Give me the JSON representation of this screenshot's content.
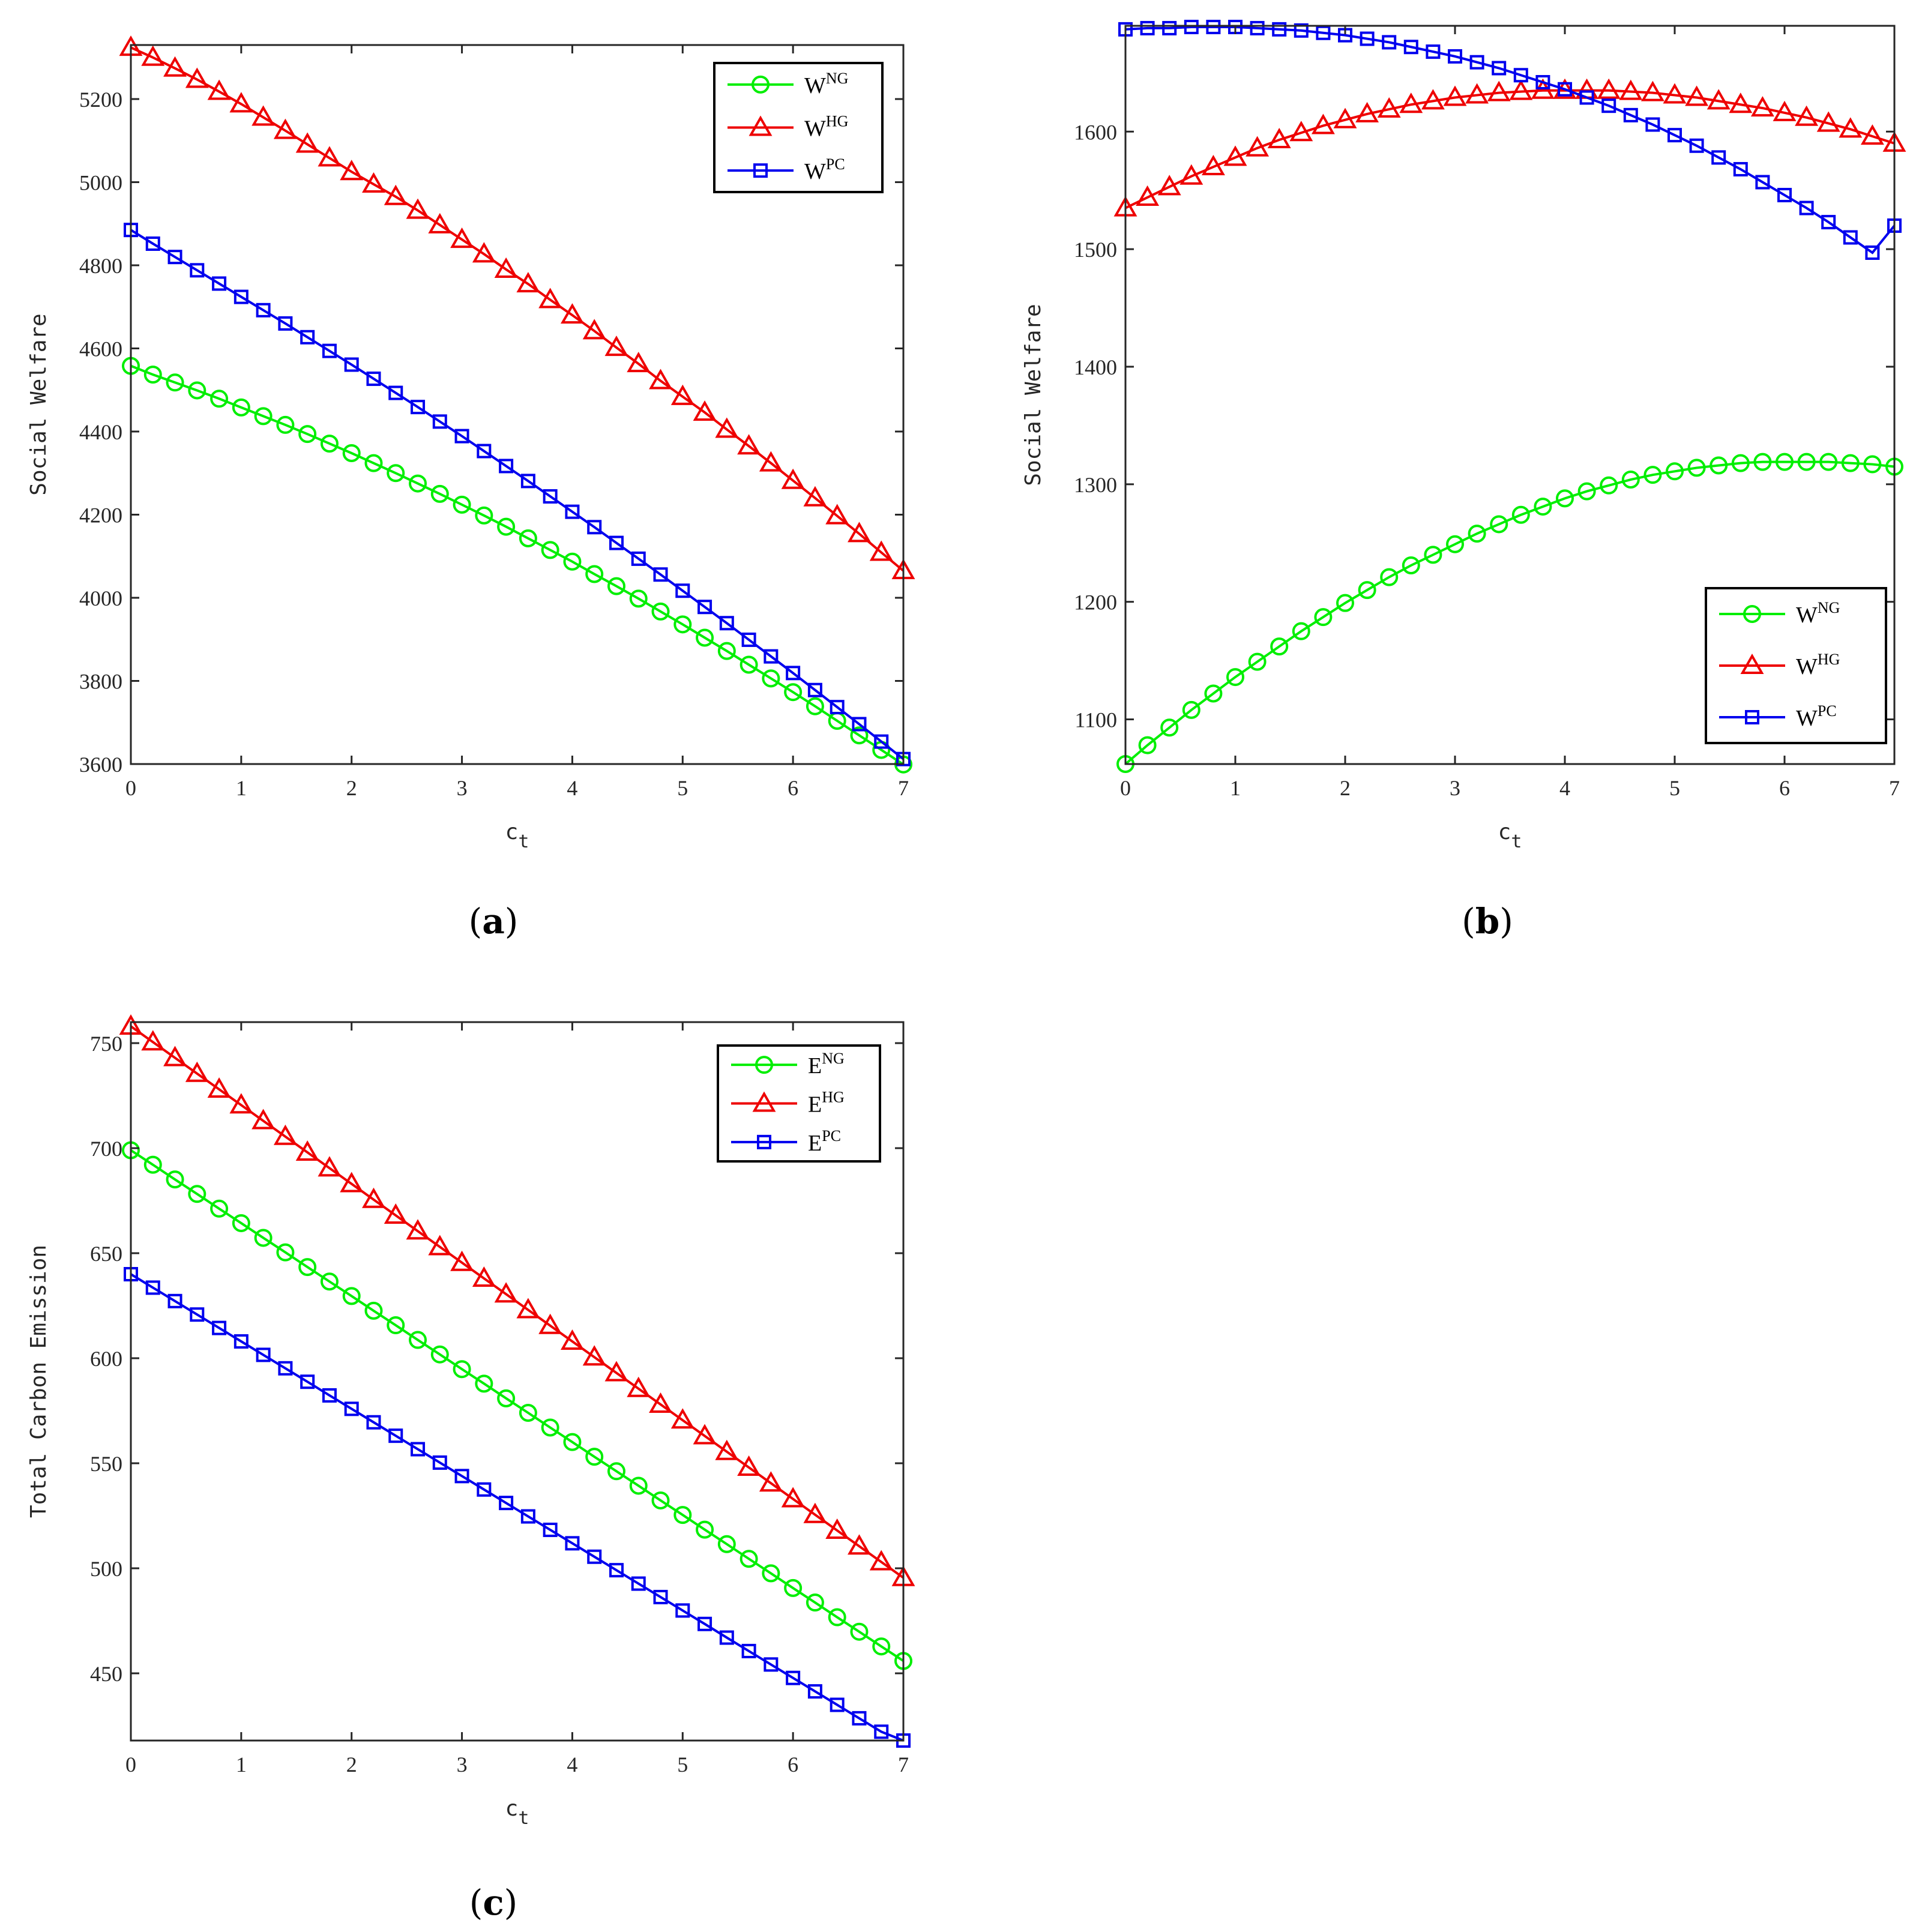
{
  "chart_data": [
    {
      "panel": "a",
      "type": "line",
      "caption_letter": "a",
      "xlabel_base": "c",
      "xlabel_sub": "t",
      "ylabel": "Social Welfare",
      "xlim": [
        0,
        7
      ],
      "ylim": [
        3600,
        5330
      ],
      "xticks": [
        0,
        1,
        2,
        3,
        4,
        5,
        6,
        7
      ],
      "yticks": [
        3600,
        3800,
        4000,
        4200,
        4400,
        4600,
        4800,
        5000,
        5200
      ],
      "legend_position": "top-right",
      "grid": false,
      "x_start": 0,
      "x_step": 0.2,
      "series": [
        {
          "base": "W",
          "sup": "NG",
          "color": "#00ee00",
          "marker": "circle",
          "values": [
            4558,
            4537,
            4518,
            4499,
            4479,
            4458,
            4437,
            4416,
            4394,
            4371,
            4348,
            4324,
            4300,
            4275,
            4250,
            4224,
            4198,
            4171,
            4143,
            4115,
            4087,
            4057,
            4028,
            3998,
            3967,
            3936,
            3904,
            3872,
            3839,
            3806,
            3773,
            3739,
            3704,
            3669,
            3634,
            3599
          ]
        },
        {
          "base": "W",
          "sup": "HG",
          "color": "#ee0000",
          "marker": "triangle",
          "values": [
            5324,
            5300,
            5274,
            5247,
            5218,
            5188,
            5156,
            5124,
            5091,
            5058,
            5025,
            4995,
            4965,
            4932,
            4897,
            4862,
            4827,
            4790,
            4755,
            4717,
            4680,
            4642,
            4602,
            4563,
            4522,
            4484,
            4446,
            4405,
            4365,
            4324,
            4282,
            4240,
            4197,
            4154,
            4109,
            4065
          ]
        },
        {
          "base": "W",
          "sup": "PC",
          "color": "#0000ee",
          "marker": "square",
          "values": [
            4885,
            4852,
            4820,
            4788,
            4756,
            4724,
            4692,
            4660,
            4627,
            4594,
            4561,
            4527,
            4493,
            4459,
            4424,
            4389,
            4353,
            4317,
            4281,
            4244,
            4207,
            4170,
            4132,
            4094,
            4056,
            4017,
            3978,
            3939,
            3899,
            3859,
            3819,
            3778,
            3737,
            3696,
            3654,
            3612
          ]
        }
      ]
    },
    {
      "panel": "b",
      "type": "line",
      "caption_letter": "b",
      "xlabel_base": "c",
      "xlabel_sub": "t",
      "ylabel": "Social Welfare",
      "xlim": [
        0,
        7
      ],
      "ylim": [
        1062,
        1690
      ],
      "xticks": [
        0,
        1,
        2,
        3,
        4,
        5,
        6,
        7
      ],
      "yticks": [
        1100,
        1200,
        1300,
        1400,
        1500,
        1600
      ],
      "legend_position": "bottom-right",
      "grid": false,
      "x_start": 0,
      "x_step": 0.2,
      "series": [
        {
          "base": "W",
          "sup": "NG",
          "color": "#00ee00",
          "marker": "circle",
          "values": [
            1062,
            1078,
            1093,
            1108,
            1122,
            1136,
            1149,
            1162,
            1175,
            1187,
            1199,
            1210,
            1221,
            1231,
            1240,
            1249,
            1258,
            1266,
            1274,
            1281,
            1288,
            1294,
            1299,
            1304,
            1308,
            1311,
            1314,
            1316,
            1318,
            1319,
            1319,
            1319,
            1319,
            1318,
            1317,
            1315
          ]
        },
        {
          "base": "W",
          "sup": "HG",
          "color": "#ee0000",
          "marker": "triangle",
          "values": [
            1535,
            1544,
            1553,
            1562,
            1570,
            1578,
            1586,
            1593,
            1599,
            1605,
            1610,
            1615,
            1619,
            1623,
            1626,
            1629,
            1631,
            1633,
            1634,
            1635,
            1635,
            1635,
            1635,
            1634,
            1633,
            1631,
            1629,
            1626,
            1623,
            1620,
            1616,
            1612,
            1607,
            1602,
            1596,
            1590
          ]
        },
        {
          "base": "W",
          "sup": "PC",
          "color": "#0000ee",
          "marker": "square",
          "values": [
            1687,
            1688,
            1688,
            1689,
            1689,
            1689,
            1688,
            1687,
            1686,
            1684,
            1682,
            1679,
            1676,
            1672,
            1668,
            1664,
            1659,
            1654,
            1648,
            1642,
            1636,
            1629,
            1622,
            1614,
            1606,
            1597,
            1588,
            1578,
            1568,
            1557,
            1546,
            1535,
            1523,
            1510,
            1497,
            1520
          ]
        }
      ]
    },
    {
      "panel": "c",
      "type": "line",
      "caption_letter": "c",
      "xlabel_base": "c",
      "xlabel_sub": "t",
      "ylabel": "Total Carbon Emission",
      "xlim": [
        0,
        7
      ],
      "ylim": [
        418,
        760
      ],
      "xticks": [
        0,
        1,
        2,
        3,
        4,
        5,
        6,
        7
      ],
      "yticks": [
        450,
        500,
        550,
        600,
        650,
        700,
        750
      ],
      "legend_position": "top-right",
      "grid": false,
      "x_start": 0,
      "x_step": 0.2,
      "series": [
        {
          "base": "E",
          "sup": "NG",
          "color": "#00ee00",
          "marker": "circle",
          "values": [
            699.0,
            692.1,
            685.1,
            678.2,
            671.2,
            664.3,
            657.3,
            650.4,
            643.4,
            636.5,
            629.6,
            622.6,
            615.7,
            608.7,
            601.8,
            594.8,
            587.9,
            580.9,
            574.0,
            567.0,
            560.1,
            553.1,
            546.2,
            539.3,
            532.3,
            525.4,
            518.4,
            511.5,
            504.5,
            497.6,
            490.6,
            483.7,
            476.7,
            469.8,
            462.8,
            455.9
          ]
        },
        {
          "base": "E",
          "sup": "HG",
          "color": "#ee0000",
          "marker": "triangle",
          "values": [
            758.0,
            750.5,
            743.0,
            735.5,
            728.0,
            720.5,
            713.0,
            705.5,
            698.0,
            690.5,
            683.0,
            675.5,
            668.0,
            660.5,
            653.0,
            645.5,
            638.0,
            630.5,
            623.0,
            615.5,
            608.0,
            600.5,
            593.0,
            585.5,
            578.0,
            570.5,
            563.0,
            555.5,
            548.0,
            540.5,
            533.0,
            525.5,
            518.0,
            510.5,
            503.0,
            495.5
          ]
        },
        {
          "base": "E",
          "sup": "PC",
          "color": "#0000ee",
          "marker": "square",
          "values": [
            640.0,
            633.6,
            627.2,
            620.8,
            614.4,
            608.0,
            601.6,
            595.2,
            588.8,
            582.3,
            575.9,
            569.5,
            563.1,
            556.7,
            550.3,
            543.9,
            537.5,
            531.1,
            524.7,
            518.3,
            511.9,
            505.5,
            499.1,
            492.7,
            486.3,
            479.9,
            473.5,
            467.0,
            460.6,
            454.2,
            447.8,
            441.4,
            435.0,
            428.6,
            422.2,
            418.0
          ]
        }
      ]
    }
  ]
}
